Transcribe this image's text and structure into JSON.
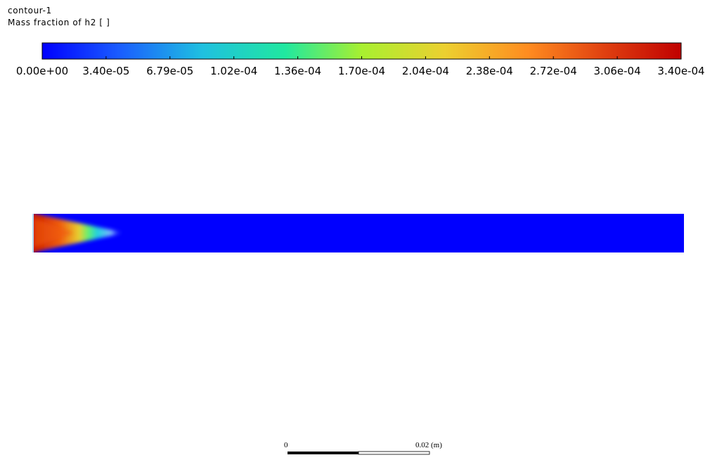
{
  "header": {
    "title": "contour-1",
    "variable": "Mass fraction of h2 [ ]"
  },
  "colorbar": {
    "ticks": [
      "0.00e+00",
      "3.40e-05",
      "6.79e-05",
      "1.02e-04",
      "1.36e-04",
      "1.70e-04",
      "2.04e-04",
      "2.38e-04",
      "2.72e-04",
      "3.06e-04",
      "3.40e-04"
    ]
  },
  "scale_bar": {
    "start": "0",
    "end": "0.02 (m)"
  }
}
